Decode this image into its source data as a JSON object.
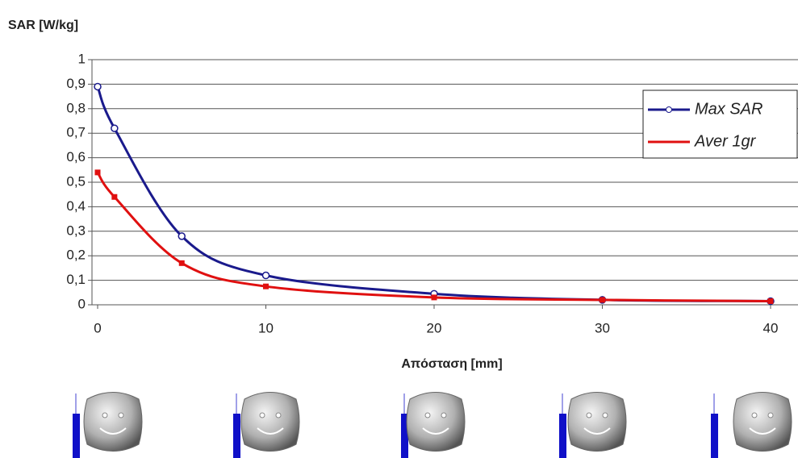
{
  "chart_data": {
    "type": "line",
    "y_label": "SAR [W/kg]",
    "x_label": "Απόσταση [mm]",
    "x": [
      0,
      1,
      5,
      10,
      20,
      30,
      40
    ],
    "series": [
      {
        "name": "Max SAR",
        "color": "#1a1a8c",
        "values": [
          0.89,
          0.72,
          0.28,
          0.12,
          0.045,
          0.02,
          0.015
        ]
      },
      {
        "name": "Aver 1gr",
        "color": "#e01010",
        "values": [
          0.54,
          0.44,
          0.17,
          0.075,
          0.03,
          0.02,
          0.015
        ]
      }
    ],
    "xlim": [
      0,
      40
    ],
    "xticks": [
      0,
      10,
      20,
      30,
      40
    ],
    "ylim": [
      0,
      1
    ],
    "yticks": [
      0,
      {
        "value": 0.1,
        "label": "0,1"
      },
      {
        "value": 0.2,
        "label": "0,2"
      },
      {
        "value": 0.3,
        "label": "0,3"
      },
      {
        "value": 0.4,
        "label": "0,4"
      },
      {
        "value": 0.5,
        "label": "0,5"
      },
      {
        "value": 0.6,
        "label": "0,6"
      },
      {
        "value": 0.7,
        "label": "0,7"
      },
      {
        "value": 0.8,
        "label": "0,8"
      },
      {
        "value": 0.9,
        "label": "0,9"
      },
      1
    ],
    "grid": true,
    "legend": "upper right"
  }
}
